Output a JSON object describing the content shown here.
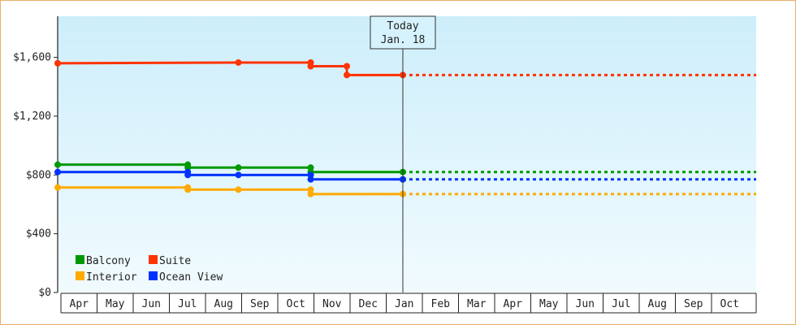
{
  "chart_data": {
    "type": "line",
    "style": "step",
    "ylim": [
      0,
      1880
    ],
    "y_ticks": [
      {
        "value": 0,
        "label": "$0"
      },
      {
        "value": 400,
        "label": "$400"
      },
      {
        "value": 800,
        "label": "$800"
      },
      {
        "value": 1200,
        "label": "$1,200"
      },
      {
        "value": 1600,
        "label": "$1,600"
      }
    ],
    "x_ticks": [
      "Apr",
      "May",
      "Jun",
      "Jul",
      "Aug",
      "Sep",
      "Oct",
      "Nov",
      "Dec",
      "Jan",
      "Feb",
      "Mar",
      "Apr",
      "May",
      "Jun",
      "Jul",
      "Aug",
      "Sep",
      "Oct"
    ],
    "today": {
      "line1": "Today",
      "line2": "Jan. 18",
      "at_month_index": 9.55
    },
    "series": [
      {
        "name": "Suite",
        "color": "#ff3300",
        "points": [
          [
            0,
            1560
          ],
          [
            5.0,
            1565
          ],
          [
            7.0,
            1565
          ],
          [
            7.0,
            1540
          ],
          [
            8.0,
            1540
          ],
          [
            8.0,
            1480
          ],
          [
            9.55,
            1480
          ]
        ],
        "projection": 1480
      },
      {
        "name": "Balcony",
        "color": "#009900",
        "points": [
          [
            0,
            870
          ],
          [
            3.6,
            870
          ],
          [
            3.6,
            850
          ],
          [
            5.0,
            850
          ],
          [
            7.0,
            850
          ],
          [
            7.0,
            820
          ],
          [
            9.55,
            820
          ]
        ],
        "projection": 820
      },
      {
        "name": "Ocean View",
        "color": "#0033ff",
        "points": [
          [
            0,
            820
          ],
          [
            3.6,
            820
          ],
          [
            3.6,
            800
          ],
          [
            5.0,
            800
          ],
          [
            7.0,
            800
          ],
          [
            7.0,
            770
          ],
          [
            9.55,
            770
          ]
        ],
        "projection": 770
      },
      {
        "name": "Interior",
        "color": "#ffaa00",
        "points": [
          [
            0,
            715
          ],
          [
            3.6,
            715
          ],
          [
            3.6,
            700
          ],
          [
            5.0,
            700
          ],
          [
            7.0,
            700
          ],
          [
            7.0,
            670
          ],
          [
            9.55,
            670
          ]
        ],
        "projection": 670
      }
    ],
    "legend": [
      {
        "name": "Balcony",
        "color": "#009900"
      },
      {
        "name": "Suite",
        "color": "#ff3300"
      },
      {
        "name": "Interior",
        "color": "#ffaa00"
      },
      {
        "name": "Ocean View",
        "color": "#0033ff"
      }
    ],
    "legend_position": "bottom-left",
    "grid": false
  }
}
